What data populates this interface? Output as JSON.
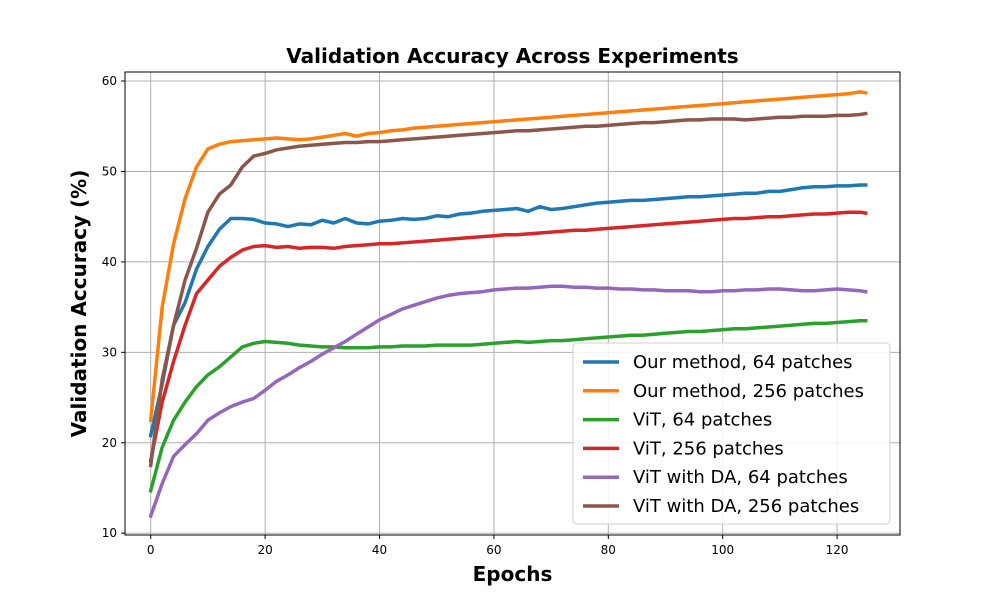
{
  "chart_data": {
    "type": "line",
    "title": "Validation Accuracy Across Experiments",
    "xlabel": "Epochs",
    "ylabel": "Validation Accuracy (%)",
    "xlim": [
      -4.5,
      131
    ],
    "ylim": [
      9.8,
      61
    ],
    "xticks": [
      0,
      20,
      40,
      60,
      80,
      100,
      120
    ],
    "yticks": [
      10,
      20,
      30,
      40,
      50,
      60
    ],
    "grid": true,
    "legend_position": "lower-right",
    "series": [
      {
        "name": "Our method, 64 patches",
        "color": "#1f77b4",
        "x": [
          0,
          2,
          4,
          6,
          8,
          10,
          12,
          14,
          16,
          18,
          20,
          22,
          24,
          26,
          28,
          30,
          32,
          34,
          36,
          38,
          40,
          42,
          44,
          46,
          48,
          50,
          52,
          54,
          56,
          58,
          60,
          62,
          64,
          66,
          68,
          70,
          72,
          74,
          76,
          78,
          80,
          82,
          84,
          86,
          88,
          90,
          92,
          94,
          96,
          98,
          100,
          102,
          104,
          106,
          108,
          110,
          112,
          114,
          116,
          118,
          120,
          122,
          124,
          125
        ],
        "y": [
          20.8,
          26.5,
          33.0,
          35.5,
          39.2,
          41.7,
          43.6,
          44.8,
          44.8,
          44.7,
          44.3,
          44.2,
          43.9,
          44.2,
          44.1,
          44.6,
          44.3,
          44.8,
          44.3,
          44.2,
          44.5,
          44.6,
          44.8,
          44.7,
          44.8,
          45.1,
          45.0,
          45.3,
          45.4,
          45.6,
          45.7,
          45.8,
          45.9,
          45.6,
          46.1,
          45.8,
          45.9,
          46.1,
          46.3,
          46.5,
          46.6,
          46.7,
          46.8,
          46.8,
          46.9,
          47.0,
          47.1,
          47.2,
          47.2,
          47.3,
          47.4,
          47.5,
          47.6,
          47.6,
          47.8,
          47.8,
          48.0,
          48.2,
          48.3,
          48.3,
          48.4,
          48.4,
          48.5,
          48.5
        ]
      },
      {
        "name": "Our method, 256 patches",
        "color": "#ff7f0e",
        "x": [
          0,
          2,
          4,
          6,
          8,
          10,
          12,
          14,
          16,
          18,
          20,
          22,
          24,
          26,
          28,
          30,
          32,
          34,
          36,
          38,
          40,
          42,
          44,
          46,
          48,
          50,
          52,
          54,
          56,
          58,
          60,
          62,
          64,
          66,
          68,
          70,
          72,
          74,
          76,
          78,
          80,
          82,
          84,
          86,
          88,
          90,
          92,
          94,
          96,
          98,
          100,
          102,
          104,
          106,
          108,
          110,
          112,
          114,
          116,
          118,
          120,
          122,
          124,
          125
        ],
        "y": [
          22.5,
          35.0,
          42.0,
          47.0,
          50.5,
          52.5,
          53.0,
          53.3,
          53.4,
          53.5,
          53.6,
          53.7,
          53.6,
          53.5,
          53.6,
          53.8,
          54.0,
          54.2,
          53.9,
          54.2,
          54.3,
          54.5,
          54.6,
          54.8,
          54.9,
          55.0,
          55.1,
          55.2,
          55.3,
          55.4,
          55.5,
          55.6,
          55.7,
          55.8,
          55.9,
          56.0,
          56.1,
          56.2,
          56.3,
          56.4,
          56.5,
          56.6,
          56.7,
          56.8,
          56.9,
          57.0,
          57.1,
          57.2,
          57.3,
          57.4,
          57.5,
          57.6,
          57.7,
          57.8,
          57.9,
          58.0,
          58.1,
          58.2,
          58.3,
          58.4,
          58.5,
          58.6,
          58.8,
          58.7
        ]
      },
      {
        "name": "ViT, 64 patches",
        "color": "#2ca02c",
        "x": [
          0,
          2,
          4,
          6,
          8,
          10,
          12,
          14,
          16,
          18,
          20,
          22,
          24,
          26,
          28,
          30,
          32,
          34,
          36,
          38,
          40,
          42,
          44,
          46,
          48,
          50,
          52,
          54,
          56,
          58,
          60,
          62,
          64,
          66,
          68,
          70,
          72,
          74,
          76,
          78,
          80,
          82,
          84,
          86,
          88,
          90,
          92,
          94,
          96,
          98,
          100,
          102,
          104,
          106,
          108,
          110,
          112,
          114,
          116,
          118,
          120,
          122,
          124,
          125
        ],
        "y": [
          14.7,
          19.5,
          22.5,
          24.5,
          26.2,
          27.5,
          28.4,
          29.5,
          30.6,
          31.0,
          31.2,
          31.1,
          31.0,
          30.8,
          30.7,
          30.6,
          30.6,
          30.5,
          30.5,
          30.5,
          30.6,
          30.6,
          30.7,
          30.7,
          30.7,
          30.8,
          30.8,
          30.8,
          30.8,
          30.9,
          31.0,
          31.1,
          31.2,
          31.1,
          31.2,
          31.3,
          31.3,
          31.4,
          31.5,
          31.6,
          31.7,
          31.8,
          31.9,
          31.9,
          32.0,
          32.1,
          32.2,
          32.3,
          32.3,
          32.4,
          32.5,
          32.6,
          32.6,
          32.7,
          32.8,
          32.9,
          33.0,
          33.1,
          33.2,
          33.2,
          33.3,
          33.4,
          33.5,
          33.5
        ]
      },
      {
        "name": "ViT, 256 patches",
        "color": "#d62728",
        "x": [
          0,
          2,
          4,
          6,
          8,
          10,
          12,
          14,
          16,
          18,
          20,
          22,
          24,
          26,
          28,
          30,
          32,
          34,
          36,
          38,
          40,
          42,
          44,
          46,
          48,
          50,
          52,
          54,
          56,
          58,
          60,
          62,
          64,
          66,
          68,
          70,
          72,
          74,
          76,
          78,
          80,
          82,
          84,
          86,
          88,
          90,
          92,
          94,
          96,
          98,
          100,
          102,
          104,
          106,
          108,
          110,
          112,
          114,
          116,
          118,
          120,
          122,
          124,
          125
        ],
        "y": [
          18.0,
          24.5,
          29.0,
          33.0,
          36.5,
          38.0,
          39.5,
          40.5,
          41.3,
          41.7,
          41.8,
          41.6,
          41.7,
          41.5,
          41.6,
          41.6,
          41.5,
          41.7,
          41.8,
          41.9,
          42.0,
          42.0,
          42.1,
          42.2,
          42.3,
          42.4,
          42.5,
          42.6,
          42.7,
          42.8,
          42.9,
          43.0,
          43.0,
          43.1,
          43.2,
          43.3,
          43.4,
          43.5,
          43.5,
          43.6,
          43.7,
          43.8,
          43.9,
          44.0,
          44.1,
          44.2,
          44.3,
          44.4,
          44.5,
          44.6,
          44.7,
          44.8,
          44.8,
          44.9,
          45.0,
          45.0,
          45.1,
          45.2,
          45.3,
          45.3,
          45.4,
          45.5,
          45.5,
          45.4
        ]
      },
      {
        "name": "ViT with DA, 64 patches",
        "color": "#9467bd",
        "x": [
          0,
          2,
          4,
          6,
          8,
          10,
          12,
          14,
          16,
          18,
          20,
          22,
          24,
          26,
          28,
          30,
          32,
          34,
          36,
          38,
          40,
          42,
          44,
          46,
          48,
          50,
          52,
          54,
          56,
          58,
          60,
          62,
          64,
          66,
          68,
          70,
          72,
          74,
          76,
          78,
          80,
          82,
          84,
          86,
          88,
          90,
          92,
          94,
          96,
          98,
          100,
          102,
          104,
          106,
          108,
          110,
          112,
          114,
          116,
          118,
          120,
          122,
          124,
          125
        ],
        "y": [
          11.9,
          15.5,
          18.5,
          19.8,
          21.0,
          22.5,
          23.3,
          24.0,
          24.5,
          24.9,
          25.8,
          26.8,
          27.5,
          28.3,
          29.0,
          29.8,
          30.5,
          31.2,
          32.0,
          32.8,
          33.6,
          34.2,
          34.8,
          35.2,
          35.6,
          36.0,
          36.3,
          36.5,
          36.6,
          36.7,
          36.9,
          37.0,
          37.1,
          37.1,
          37.2,
          37.3,
          37.3,
          37.2,
          37.2,
          37.1,
          37.1,
          37.0,
          37.0,
          36.9,
          36.9,
          36.8,
          36.8,
          36.8,
          36.7,
          36.7,
          36.8,
          36.8,
          36.9,
          36.9,
          37.0,
          37.0,
          36.9,
          36.8,
          36.8,
          36.9,
          37.0,
          36.9,
          36.8,
          36.7
        ]
      },
      {
        "name": "ViT with DA, 256 patches",
        "color": "#8c564b",
        "x": [
          0,
          2,
          4,
          6,
          8,
          10,
          12,
          14,
          16,
          18,
          20,
          22,
          24,
          26,
          28,
          30,
          32,
          34,
          36,
          38,
          40,
          42,
          44,
          46,
          48,
          50,
          52,
          54,
          56,
          58,
          60,
          62,
          64,
          66,
          68,
          70,
          72,
          74,
          76,
          78,
          80,
          82,
          84,
          86,
          88,
          90,
          92,
          94,
          96,
          98,
          100,
          102,
          104,
          106,
          108,
          110,
          112,
          114,
          116,
          118,
          120,
          122,
          124,
          125
        ],
        "y": [
          17.5,
          27.0,
          33.0,
          38.0,
          41.5,
          45.5,
          47.5,
          48.5,
          50.5,
          51.7,
          52.0,
          52.4,
          52.6,
          52.8,
          52.9,
          53.0,
          53.1,
          53.2,
          53.2,
          53.3,
          53.3,
          53.4,
          53.5,
          53.6,
          53.7,
          53.8,
          53.9,
          54.0,
          54.1,
          54.2,
          54.3,
          54.4,
          54.5,
          54.5,
          54.6,
          54.7,
          54.8,
          54.9,
          55.0,
          55.0,
          55.1,
          55.2,
          55.3,
          55.4,
          55.4,
          55.5,
          55.6,
          55.7,
          55.7,
          55.8,
          55.8,
          55.8,
          55.7,
          55.8,
          55.9,
          56.0,
          56.0,
          56.1,
          56.1,
          56.1,
          56.2,
          56.2,
          56.3,
          56.4
        ]
      }
    ]
  }
}
